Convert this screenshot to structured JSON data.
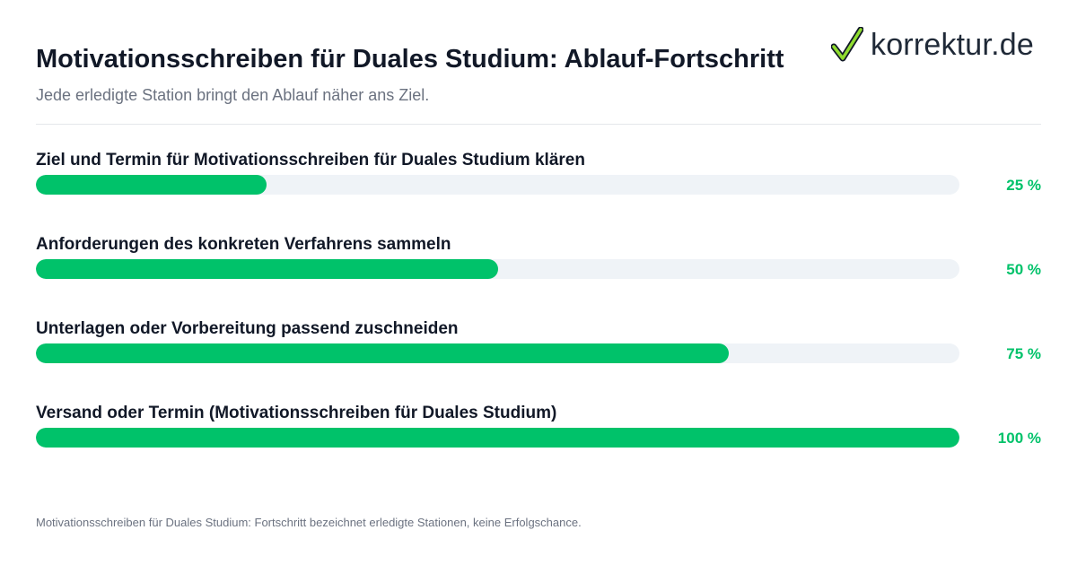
{
  "header": {
    "title": "Motivationsschreiben für Duales Studium: Ablauf-Fortschritt",
    "subtitle": "Jede erledigte Station bringt den Ablauf näher ans Ziel.",
    "logo_text": "korrektur.de",
    "logo_icon": "checkmark-icon"
  },
  "colors": {
    "accent": "#00c26a",
    "track": "#eff3f7",
    "text": "#111827",
    "muted": "#6b7280"
  },
  "chart_data": {
    "type": "bar",
    "orientation": "horizontal",
    "title": "Motivationsschreiben für Duales Studium: Ablauf-Fortschritt",
    "subtitle": "Jede erledigte Station bringt den Ablauf näher ans Ziel.",
    "xlim": [
      0,
      100
    ],
    "unit": "%",
    "grid": false,
    "categories": [
      "Ziel und Termin für Motivationsschreiben für Duales Studium klären",
      "Anforderungen des konkreten Verfahrens sammeln",
      "Unterlagen oder Vorbereitung passend zuschneiden",
      "Versand oder Termin (Motivationsschreiben für Duales Studium)"
    ],
    "values": [
      25,
      50,
      75,
      100
    ],
    "value_labels": [
      "25 %",
      "50 %",
      "75 %",
      "100 %"
    ]
  },
  "footnote": "Motivationsschreiben für Duales Studium: Fortschritt bezeichnet erledigte Stationen, keine Erfolgschance."
}
